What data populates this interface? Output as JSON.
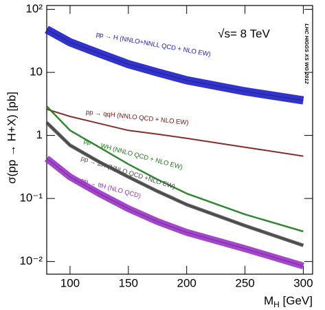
{
  "chart_data": {
    "type": "line",
    "y_label": "σ(pp → H+X) [pb]",
    "x_label": "M",
    "x_label_sub": "H",
    "x_label_unit": " [GeV]",
    "annotations": [
      "√s= 8 TeV",
      "LHC HIGGS XS WG 2012"
    ],
    "x": [
      80,
      100,
      125,
      150,
      175,
      200,
      250,
      300
    ],
    "series": [
      {
        "name": "pp → H (NNLO+NNLL QCD + NLO EW)",
        "color": "#1c1cc8",
        "values": [
          48,
          30,
          20,
          13.5,
          10,
          7.5,
          5,
          3.6
        ]
      },
      {
        "name": "pp → qqH (NNLO QCD + NLO EW)",
        "color": "#7a1414",
        "values": [
          2.6,
          2.0,
          1.55,
          1.2,
          1.05,
          0.9,
          0.65,
          0.47
        ]
      },
      {
        "name": "pp → WH (NNLO QCD + NLO EW)",
        "color": "#1a7a1a",
        "values": [
          2.9,
          1.2,
          0.65,
          0.35,
          0.2,
          0.12,
          0.056,
          0.03
        ]
      },
      {
        "name": "pp → ZH (NNLO QCD +NLO EW)",
        "color": "#4a4a4a",
        "values": [
          1.6,
          0.7,
          0.38,
          0.22,
          0.13,
          0.08,
          0.037,
          0.018
        ]
      },
      {
        "name": "pp → ttH (NLO QCD)",
        "color": "#9a32c8",
        "values": [
          0.43,
          0.22,
          0.12,
          0.069,
          0.043,
          0.029,
          0.016,
          0.0085
        ]
      }
    ],
    "log_y": true,
    "xlim": [
      80,
      308
    ],
    "xticks": [
      100,
      150,
      200,
      250,
      300
    ],
    "ylim": [
      0.0063,
      115
    ],
    "yticks": [
      {
        "value": 0.01,
        "label": "10⁻²"
      },
      {
        "value": 0.1,
        "label": "10⁻¹"
      },
      1,
      10,
      {
        "value": 100,
        "label": "10²"
      }
    ]
  }
}
